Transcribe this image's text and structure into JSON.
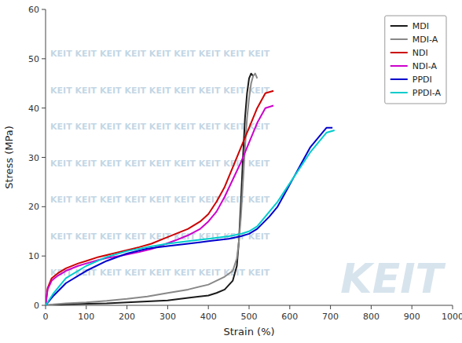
{
  "chart_data": {
    "type": "line",
    "xlabel": "Strain (%)",
    "ylabel": "Stress (MPa)",
    "xlim": [
      0,
      1000
    ],
    "ylim": [
      0,
      60
    ],
    "xticks": [
      0,
      100,
      200,
      300,
      400,
      500,
      600,
      700,
      800,
      900,
      1000
    ],
    "yticks": [
      0,
      10,
      20,
      30,
      40,
      50,
      60
    ],
    "legend": "upper right",
    "annotations": [
      "KEIT KEIT KEIT KEIT KEIT KEIT KEIT KEIT KEIT",
      "KEIT KEIT KEIT KEIT KEIT KEIT KEIT KEIT KEIT",
      "KEIT KEIT KEIT KEIT KEIT KEIT KEIT KEIT KEIT",
      "KEIT KEIT KEIT KEIT KEIT KEIT KEIT KEIT KEIT",
      "KEIT KEIT KEIT KEIT KEIT KEIT KEIT KEIT KEIT",
      "KEIT KEIT KEIT KEIT KEIT KEIT KEIT KEIT KEIT",
      "KEIT KEIT KEIT KEIT KEIT KEIT KEIT KEIT KEIT",
      "KEIT"
    ],
    "series": [
      {
        "name": "MDI",
        "color": "#1a1a1a",
        "x": [
          0,
          20,
          50,
          100,
          150,
          200,
          250,
          300,
          350,
          400,
          420,
          440,
          460,
          470,
          475,
          480,
          485,
          490,
          495,
          500,
          505,
          510
        ],
        "values": [
          0,
          0.1,
          0.2,
          0.3,
          0.4,
          0.6,
          0.8,
          1.0,
          1.5,
          2.0,
          2.5,
          3.2,
          5.0,
          8.0,
          13,
          21,
          30,
          38,
          43,
          46,
          47,
          46.5
        ]
      },
      {
        "name": "MDI-A",
        "color": "#888888",
        "x": [
          0,
          20,
          50,
          100,
          150,
          200,
          250,
          300,
          350,
          400,
          420,
          440,
          460,
          470,
          475,
          480,
          485,
          490,
          495,
          500,
          505,
          510,
          515,
          520
        ],
        "values": [
          0,
          0.2,
          0.4,
          0.6,
          0.9,
          1.3,
          1.8,
          2.5,
          3.2,
          4.2,
          5.0,
          5.8,
          7.0,
          9.5,
          13,
          18,
          25,
          32,
          38,
          42,
          45,
          46.5,
          47,
          46
        ]
      },
      {
        "name": "NDI",
        "color": "#cc0000",
        "x": [
          0,
          5,
          15,
          30,
          50,
          80,
          100,
          130,
          150,
          180,
          200,
          230,
          260,
          290,
          320,
          350,
          380,
          400,
          420,
          440,
          460,
          480,
          500,
          520,
          540,
          560
        ],
        "values": [
          0,
          3.5,
          5.5,
          6.5,
          7.5,
          8.5,
          9.0,
          9.8,
          10.2,
          10.8,
          11.2,
          11.8,
          12.5,
          13.5,
          14.5,
          15.5,
          17.0,
          18.5,
          21,
          24,
          28,
          32,
          36,
          40,
          43,
          43.5
        ]
      },
      {
        "name": "NDI-A",
        "color": "#cc00cc",
        "x": [
          0,
          5,
          15,
          30,
          50,
          80,
          100,
          130,
          150,
          180,
          200,
          230,
          260,
          290,
          320,
          350,
          380,
          400,
          420,
          440,
          460,
          480,
          500,
          520,
          540,
          560
        ],
        "values": [
          0,
          3.2,
          5.0,
          6.0,
          7.0,
          8.0,
          8.5,
          9.2,
          9.6,
          10.0,
          10.3,
          10.8,
          11.4,
          12.3,
          13.2,
          14.2,
          15.5,
          17.0,
          19,
          22,
          25.5,
          29,
          33,
          37,
          40,
          40.5
        ]
      },
      {
        "name": "PPDI",
        "color": "#0000cc",
        "x": [
          0,
          20,
          50,
          100,
          150,
          200,
          250,
          300,
          350,
          400,
          450,
          480,
          500,
          520,
          550,
          570,
          590,
          610,
          630,
          650,
          670,
          690,
          705
        ],
        "values": [
          0,
          2.0,
          4.5,
          7.0,
          9.0,
          10.5,
          11.5,
          12.0,
          12.5,
          13.0,
          13.5,
          14.0,
          14.5,
          15.5,
          18.0,
          20,
          23,
          26,
          29,
          32,
          34,
          36,
          36
        ]
      },
      {
        "name": "PPDI-A",
        "color": "#00cccc",
        "x": [
          0,
          20,
          50,
          100,
          150,
          200,
          250,
          300,
          350,
          400,
          450,
          480,
          500,
          520,
          550,
          570,
          590,
          610,
          630,
          650,
          670,
          690,
          710
        ],
        "values": [
          0,
          2.5,
          5.5,
          8.0,
          9.8,
          11.0,
          11.8,
          12.5,
          13.0,
          13.5,
          14.0,
          14.5,
          15.0,
          16.0,
          19.0,
          21,
          23.5,
          26,
          28.5,
          31,
          33,
          35,
          35.5
        ]
      }
    ]
  }
}
